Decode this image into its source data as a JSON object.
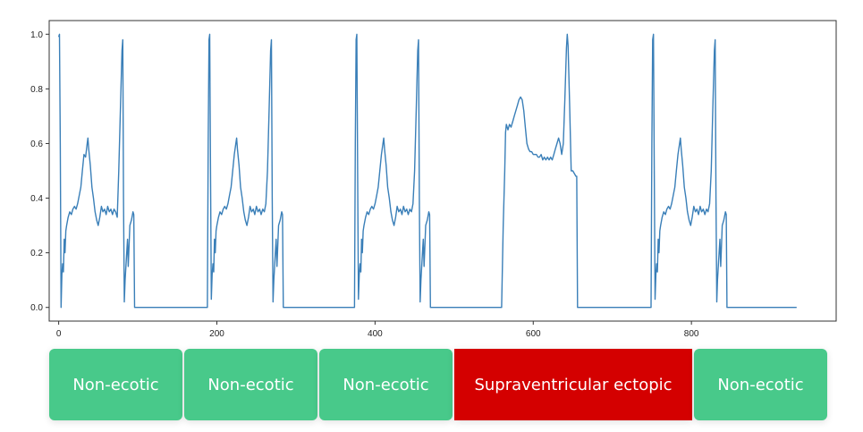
{
  "chart_data": {
    "type": "line",
    "xlim": [
      -12,
      983
    ],
    "ylim": [
      -0.05,
      1.05
    ],
    "x_ticks": [
      0,
      200,
      400,
      600,
      800
    ],
    "y_ticks": [
      0.0,
      0.2,
      0.4,
      0.6,
      0.8,
      1.0
    ],
    "x_tick_labels": [
      "0",
      "200",
      "400",
      "600",
      "800"
    ],
    "y_tick_labels": [
      "0.0",
      "0.2",
      "0.4",
      "0.6",
      "0.8",
      "1.0"
    ],
    "grid": false,
    "series": [
      {
        "color": "#3a7fb8",
        "points": [
          [
            0,
            0.99
          ],
          [
            1,
            1.0
          ],
          [
            2,
            0.6
          ],
          [
            3,
            0.0
          ],
          [
            4,
            0.12
          ],
          [
            5,
            0.16
          ],
          [
            6,
            0.13
          ],
          [
            7,
            0.25
          ],
          [
            8,
            0.2
          ],
          [
            9,
            0.28
          ],
          [
            10,
            0.3
          ],
          [
            12,
            0.33
          ],
          [
            14,
            0.35
          ],
          [
            16,
            0.34
          ],
          [
            18,
            0.36
          ],
          [
            20,
            0.37
          ],
          [
            22,
            0.36
          ],
          [
            24,
            0.38
          ],
          [
            26,
            0.41
          ],
          [
            28,
            0.44
          ],
          [
            30,
            0.5
          ],
          [
            32,
            0.56
          ],
          [
            34,
            0.55
          ],
          [
            36,
            0.6
          ],
          [
            37,
            0.62
          ],
          [
            38,
            0.58
          ],
          [
            40,
            0.52
          ],
          [
            42,
            0.44
          ],
          [
            44,
            0.4
          ],
          [
            46,
            0.35
          ],
          [
            48,
            0.32
          ],
          [
            50,
            0.3
          ],
          [
            52,
            0.33
          ],
          [
            54,
            0.37
          ],
          [
            56,
            0.35
          ],
          [
            58,
            0.36
          ],
          [
            60,
            0.34
          ],
          [
            62,
            0.37
          ],
          [
            64,
            0.35
          ],
          [
            66,
            0.36
          ],
          [
            68,
            0.34
          ],
          [
            70,
            0.36
          ],
          [
            72,
            0.35
          ],
          [
            74,
            0.33
          ],
          [
            76,
            0.5
          ],
          [
            78,
            0.72
          ],
          [
            80,
            0.94
          ],
          [
            81,
            0.98
          ],
          [
            82,
            0.4
          ],
          [
            83,
            0.02
          ],
          [
            84,
            0.1
          ],
          [
            86,
            0.2
          ],
          [
            87,
            0.25
          ],
          [
            88,
            0.15
          ],
          [
            90,
            0.3
          ],
          [
            92,
            0.32
          ],
          [
            94,
            0.35
          ],
          [
            95,
            0.34
          ],
          [
            96,
            0.0
          ],
          [
            188,
            0.0
          ],
          [
            189,
            0.6
          ],
          [
            190,
            0.98
          ],
          [
            191,
            1.0
          ],
          [
            192,
            0.5
          ],
          [
            193,
            0.03
          ],
          [
            194,
            0.12
          ],
          [
            195,
            0.16
          ],
          [
            196,
            0.13
          ],
          [
            197,
            0.25
          ],
          [
            198,
            0.2
          ],
          [
            199,
            0.28
          ],
          [
            200,
            0.3
          ],
          [
            202,
            0.33
          ],
          [
            204,
            0.35
          ],
          [
            206,
            0.34
          ],
          [
            208,
            0.36
          ],
          [
            210,
            0.37
          ],
          [
            212,
            0.36
          ],
          [
            214,
            0.38
          ],
          [
            216,
            0.41
          ],
          [
            218,
            0.44
          ],
          [
            220,
            0.5
          ],
          [
            222,
            0.56
          ],
          [
            224,
            0.6
          ],
          [
            225,
            0.62
          ],
          [
            226,
            0.58
          ],
          [
            228,
            0.52
          ],
          [
            230,
            0.44
          ],
          [
            232,
            0.4
          ],
          [
            234,
            0.35
          ],
          [
            236,
            0.32
          ],
          [
            238,
            0.3
          ],
          [
            240,
            0.33
          ],
          [
            242,
            0.37
          ],
          [
            244,
            0.35
          ],
          [
            246,
            0.36
          ],
          [
            248,
            0.34
          ],
          [
            250,
            0.37
          ],
          [
            252,
            0.35
          ],
          [
            254,
            0.36
          ],
          [
            256,
            0.34
          ],
          [
            258,
            0.36
          ],
          [
            260,
            0.35
          ],
          [
            262,
            0.38
          ],
          [
            264,
            0.5
          ],
          [
            266,
            0.72
          ],
          [
            268,
            0.94
          ],
          [
            269,
            0.98
          ],
          [
            270,
            0.4
          ],
          [
            271,
            0.02
          ],
          [
            272,
            0.1
          ],
          [
            274,
            0.2
          ],
          [
            275,
            0.25
          ],
          [
            276,
            0.15
          ],
          [
            278,
            0.3
          ],
          [
            280,
            0.32
          ],
          [
            282,
            0.35
          ],
          [
            283,
            0.34
          ],
          [
            284,
            0.0
          ],
          [
            374,
            0.0
          ],
          [
            375,
            0.6
          ],
          [
            376,
            0.98
          ],
          [
            377,
            1.0
          ],
          [
            378,
            0.5
          ],
          [
            379,
            0.03
          ],
          [
            380,
            0.12
          ],
          [
            381,
            0.16
          ],
          [
            382,
            0.13
          ],
          [
            383,
            0.25
          ],
          [
            384,
            0.2
          ],
          [
            385,
            0.28
          ],
          [
            386,
            0.3
          ],
          [
            388,
            0.33
          ],
          [
            390,
            0.35
          ],
          [
            392,
            0.34
          ],
          [
            394,
            0.36
          ],
          [
            396,
            0.37
          ],
          [
            398,
            0.36
          ],
          [
            400,
            0.38
          ],
          [
            402,
            0.41
          ],
          [
            404,
            0.44
          ],
          [
            406,
            0.5
          ],
          [
            408,
            0.56
          ],
          [
            410,
            0.6
          ],
          [
            411,
            0.62
          ],
          [
            412,
            0.58
          ],
          [
            414,
            0.52
          ],
          [
            416,
            0.44
          ],
          [
            418,
            0.4
          ],
          [
            420,
            0.35
          ],
          [
            422,
            0.32
          ],
          [
            424,
            0.3
          ],
          [
            426,
            0.33
          ],
          [
            428,
            0.37
          ],
          [
            430,
            0.35
          ],
          [
            432,
            0.36
          ],
          [
            434,
            0.34
          ],
          [
            436,
            0.37
          ],
          [
            438,
            0.35
          ],
          [
            440,
            0.36
          ],
          [
            442,
            0.34
          ],
          [
            444,
            0.36
          ],
          [
            446,
            0.35
          ],
          [
            448,
            0.38
          ],
          [
            450,
            0.5
          ],
          [
            452,
            0.72
          ],
          [
            454,
            0.94
          ],
          [
            455,
            0.98
          ],
          [
            456,
            0.4
          ],
          [
            457,
            0.02
          ],
          [
            458,
            0.1
          ],
          [
            460,
            0.2
          ],
          [
            461,
            0.25
          ],
          [
            462,
            0.15
          ],
          [
            464,
            0.3
          ],
          [
            466,
            0.32
          ],
          [
            468,
            0.35
          ],
          [
            469,
            0.34
          ],
          [
            470,
            0.0
          ],
          [
            560,
            0.0
          ],
          [
            562,
            0.3
          ],
          [
            564,
            0.5
          ],
          [
            565,
            0.64
          ],
          [
            566,
            0.67
          ],
          [
            568,
            0.65
          ],
          [
            570,
            0.67
          ],
          [
            572,
            0.66
          ],
          [
            574,
            0.68
          ],
          [
            576,
            0.7
          ],
          [
            578,
            0.72
          ],
          [
            580,
            0.74
          ],
          [
            582,
            0.76
          ],
          [
            584,
            0.77
          ],
          [
            586,
            0.76
          ],
          [
            588,
            0.72
          ],
          [
            590,
            0.66
          ],
          [
            592,
            0.6
          ],
          [
            594,
            0.58
          ],
          [
            596,
            0.57
          ],
          [
            598,
            0.57
          ],
          [
            600,
            0.56
          ],
          [
            602,
            0.56
          ],
          [
            604,
            0.56
          ],
          [
            606,
            0.55
          ],
          [
            608,
            0.55
          ],
          [
            610,
            0.56
          ],
          [
            612,
            0.54
          ],
          [
            614,
            0.55
          ],
          [
            616,
            0.54
          ],
          [
            618,
            0.55
          ],
          [
            620,
            0.54
          ],
          [
            622,
            0.55
          ],
          [
            624,
            0.54
          ],
          [
            626,
            0.56
          ],
          [
            628,
            0.58
          ],
          [
            630,
            0.6
          ],
          [
            632,
            0.62
          ],
          [
            634,
            0.6
          ],
          [
            636,
            0.56
          ],
          [
            638,
            0.6
          ],
          [
            640,
            0.76
          ],
          [
            642,
            0.95
          ],
          [
            643,
            1.0
          ],
          [
            644,
            0.96
          ],
          [
            646,
            0.75
          ],
          [
            648,
            0.5
          ],
          [
            650,
            0.5
          ],
          [
            652,
            0.49
          ],
          [
            654,
            0.48
          ],
          [
            655,
            0.48
          ],
          [
            656,
            0.0
          ],
          [
            749,
            0.0
          ],
          [
            750,
            0.6
          ],
          [
            751,
            0.98
          ],
          [
            752,
            1.0
          ],
          [
            753,
            0.5
          ],
          [
            754,
            0.03
          ],
          [
            755,
            0.12
          ],
          [
            756,
            0.16
          ],
          [
            757,
            0.13
          ],
          [
            758,
            0.25
          ],
          [
            759,
            0.2
          ],
          [
            760,
            0.28
          ],
          [
            761,
            0.3
          ],
          [
            763,
            0.33
          ],
          [
            765,
            0.35
          ],
          [
            767,
            0.34
          ],
          [
            769,
            0.36
          ],
          [
            771,
            0.37
          ],
          [
            773,
            0.36
          ],
          [
            775,
            0.38
          ],
          [
            777,
            0.41
          ],
          [
            779,
            0.44
          ],
          [
            781,
            0.5
          ],
          [
            783,
            0.56
          ],
          [
            785,
            0.6
          ],
          [
            786,
            0.62
          ],
          [
            787,
            0.58
          ],
          [
            789,
            0.52
          ],
          [
            791,
            0.44
          ],
          [
            793,
            0.4
          ],
          [
            795,
            0.35
          ],
          [
            797,
            0.32
          ],
          [
            799,
            0.3
          ],
          [
            801,
            0.33
          ],
          [
            803,
            0.37
          ],
          [
            805,
            0.35
          ],
          [
            807,
            0.36
          ],
          [
            809,
            0.34
          ],
          [
            811,
            0.37
          ],
          [
            813,
            0.35
          ],
          [
            815,
            0.36
          ],
          [
            817,
            0.34
          ],
          [
            819,
            0.36
          ],
          [
            821,
            0.35
          ],
          [
            823,
            0.38
          ],
          [
            825,
            0.5
          ],
          [
            827,
            0.72
          ],
          [
            829,
            0.94
          ],
          [
            830,
            0.98
          ],
          [
            831,
            0.4
          ],
          [
            832,
            0.02
          ],
          [
            833,
            0.1
          ],
          [
            835,
            0.2
          ],
          [
            836,
            0.25
          ],
          [
            837,
            0.15
          ],
          [
            839,
            0.3
          ],
          [
            841,
            0.32
          ],
          [
            843,
            0.35
          ],
          [
            844,
            0.34
          ],
          [
            845,
            0.0
          ],
          [
            933,
            0.0
          ]
        ]
      }
    ],
    "segments": [
      {
        "label": "Non-ecotic",
        "class": "normal",
        "color": "#48c98a"
      },
      {
        "label": "Non-ecotic",
        "class": "normal",
        "color": "#48c98a"
      },
      {
        "label": "Non-ecotic",
        "class": "normal",
        "color": "#48c98a"
      },
      {
        "label": "Supraventricular ectopic",
        "class": "ectopic",
        "color": "#d40000"
      },
      {
        "label": "Non-ecotic",
        "class": "normal",
        "color": "#48c98a"
      }
    ]
  }
}
